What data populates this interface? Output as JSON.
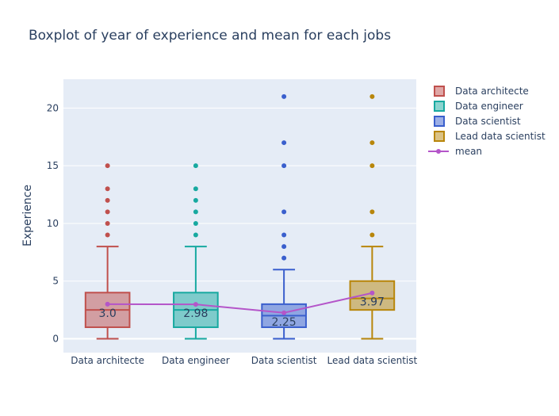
{
  "chart_data": {
    "type": "box",
    "title": "Boxplot of year of experience and mean for each jobs",
    "xlabel": "",
    "ylabel": "Experience",
    "ylim": [
      -1.2,
      22.5
    ],
    "yticks": [
      0,
      5,
      10,
      15,
      20
    ],
    "grid": true,
    "legend_position": "right",
    "categories": [
      "Data architecte",
      "Data engineer",
      "Data scientist",
      "Lead data scientist"
    ],
    "series": [
      {
        "name": "Data architecte",
        "color": "#c0504d",
        "box": {
          "min": 0,
          "q1": 1,
          "median": 2.5,
          "q3": 4,
          "max": 8
        },
        "outliers": [
          9,
          10,
          11,
          12,
          13,
          15
        ]
      },
      {
        "name": "Data engineer",
        "color": "#17a9a0",
        "box": {
          "min": 0,
          "q1": 1,
          "median": 2.5,
          "q3": 4,
          "max": 8
        },
        "outliers": [
          9,
          10,
          11,
          12,
          13,
          15
        ]
      },
      {
        "name": "Data scientist",
        "color": "#3a5fcd",
        "box": {
          "min": 0,
          "q1": 1,
          "median": 2,
          "q3": 3,
          "max": 6
        },
        "outliers": [
          7,
          8,
          9,
          11,
          15,
          17,
          21
        ]
      },
      {
        "name": "Lead data scientist",
        "color": "#b8860b",
        "box": {
          "min": 0,
          "q1": 2.5,
          "median": 3.5,
          "q3": 5,
          "max": 8
        },
        "outliers": [
          9,
          11,
          15,
          17,
          21
        ]
      }
    ],
    "mean": {
      "name": "mean",
      "color": "#b455c9",
      "values": [
        3.0,
        2.98,
        2.25,
        3.97
      ],
      "labels": [
        "3.0",
        "2.98",
        "2.25",
        "3.97"
      ]
    }
  }
}
